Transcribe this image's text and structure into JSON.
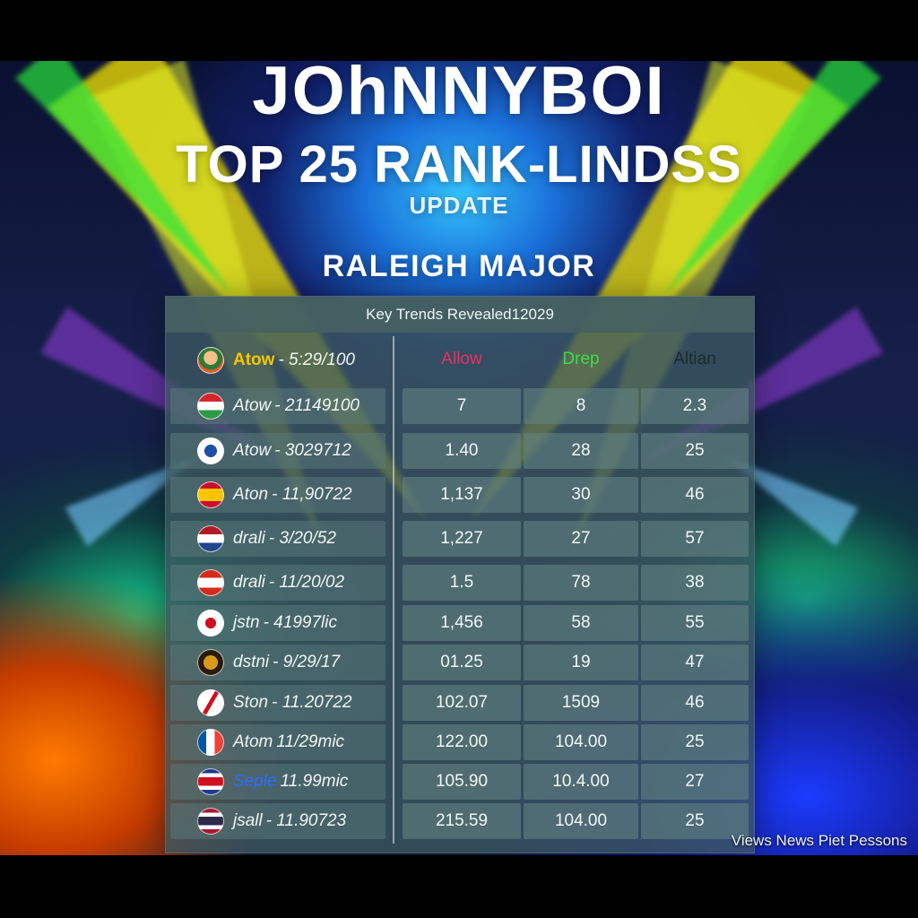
{
  "header": {
    "title": "JOhNNYBOI",
    "subtitle": "TOP 25 RANK-LINDSS",
    "update": "UPDATE",
    "event": "RALEIGH MAJOR"
  },
  "board": {
    "heading": "Key Trends Revealed12029",
    "columns": [
      {
        "label": "Allow",
        "color": "#e8335f"
      },
      {
        "label": "Drep",
        "color": "#3ddc4c"
      },
      {
        "label": "Altian",
        "color": "#1c2a2e"
      }
    ],
    "rows": [
      {
        "name": "Atow",
        "code": "- 5:29/100",
        "name_color": "#f7c600",
        "icon": "avatar-icon",
        "values": [
          "",
          "",
          ""
        ]
      },
      {
        "name": "Atow",
        "code": "- 21149100",
        "name_color": "#f1f5f4",
        "icon": "hungary-flag-icon",
        "values": [
          "7",
          "8",
          "2.3"
        ]
      },
      {
        "name": "Atow",
        "code": "- 3029712",
        "name_color": "#f1f5f4",
        "icon": "emblem-icon",
        "values": [
          "1.40",
          "28",
          "25"
        ]
      },
      {
        "name": "Aton",
        "code": "- 11,90722",
        "name_color": "#f1f5f4",
        "icon": "spain-flag-icon",
        "values": [
          "1,137",
          "30",
          "46"
        ]
      },
      {
        "name": "drali",
        "code": "- 3/20/52",
        "name_color": "#f1f5f4",
        "icon": "netherlands-flag-icon",
        "values": [
          "1,227",
          "27",
          "57"
        ]
      },
      {
        "name": "drali",
        "code": "- 11/20/02",
        "name_color": "#f1f5f4",
        "icon": "crest-flag-icon",
        "values": [
          "1.5",
          "78",
          "38"
        ]
      },
      {
        "name": "jstn",
        "code": "- 41997lic",
        "name_color": "#f1f5f4",
        "icon": "red-cross-icon",
        "values": [
          "1,456",
          "58",
          "55"
        ]
      },
      {
        "name": "dstni",
        "code": "- 9/29/17",
        "name_color": "#f1f5f4",
        "icon": "gold-emblem-icon",
        "values": [
          "01.25",
          "19",
          "47"
        ]
      },
      {
        "name": "Ston",
        "code": "- 11.20722",
        "name_color": "#f1f5f4",
        "icon": "red-slash-icon",
        "values": [
          "102.07",
          "1509",
          "46"
        ]
      },
      {
        "name": "Atom",
        "code": "11/29mic",
        "name_color": "#f1f5f4",
        "icon": "france-flag-icon",
        "values": [
          "122.00",
          "104.00",
          "25"
        ]
      },
      {
        "name": "Seple",
        "code": "11.99mic",
        "name_color": "#2b6cff",
        "icon": "costa-rica-flag-icon",
        "values": [
          "105.90",
          "10.4.00",
          "27"
        ]
      },
      {
        "name": "jsall",
        "code": "- 11.90723",
        "name_color": "#f1f5f4",
        "icon": "thailand-flag-icon",
        "values": [
          "215.59",
          "104.00",
          "25"
        ]
      }
    ]
  },
  "footer": "Views News Piet Pessons"
}
